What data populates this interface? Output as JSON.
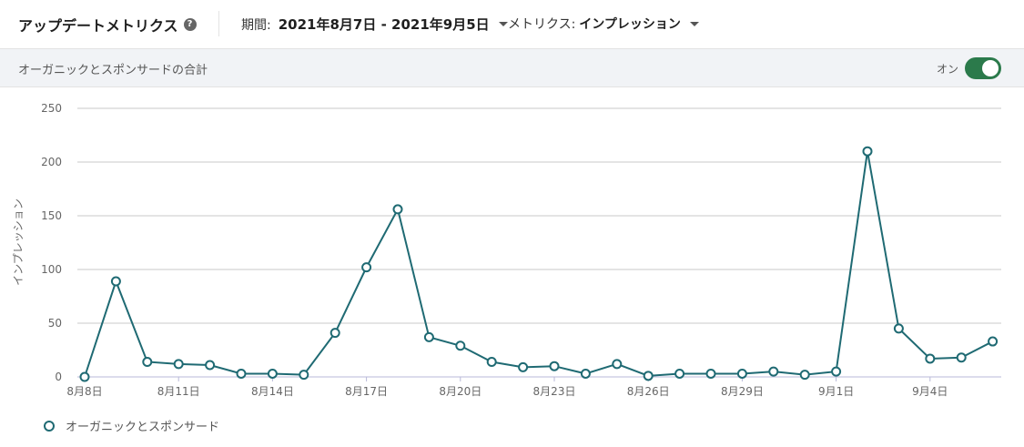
{
  "header": {
    "title": "アップデートメトリクス",
    "help_icon": "question-circle-icon",
    "period_label": "期間:",
    "period_value": "2021年8月7日 - 2021年9月5日",
    "metric_label": "メトリクス:",
    "metric_value": "インプレッション"
  },
  "subheader": {
    "label": "オーガニックとスポンサードの合計",
    "toggle_label": "オン",
    "toggle_on": true
  },
  "colors": {
    "series": "#1f6a73",
    "toggle": "#2b7a4b",
    "grid": "#c8c8c8"
  },
  "chart_data": {
    "type": "line",
    "title": "",
    "xlabel": "",
    "ylabel": "インプレッション",
    "ylim": [
      0,
      250
    ],
    "yticks": [
      0,
      50,
      100,
      150,
      200,
      250
    ],
    "grid": true,
    "legend_position": "bottom-left",
    "x": [
      "8月8日",
      "8月9日",
      "8月10日",
      "8月11日",
      "8月12日",
      "8月13日",
      "8月14日",
      "8月15日",
      "8月16日",
      "8月17日",
      "8月18日",
      "8月19日",
      "8月20日",
      "8月21日",
      "8月22日",
      "8月23日",
      "8月24日",
      "8月25日",
      "8月26日",
      "8月27日",
      "8月28日",
      "8月29日",
      "8月30日",
      "8月31日",
      "9月1日",
      "9月2日",
      "9月3日",
      "9月4日",
      "9月5日",
      "9月6日"
    ],
    "xtick_labels": [
      "8月8日",
      "8月11日",
      "8月14日",
      "8月17日",
      "8月20日",
      "8月23日",
      "8月26日",
      "8月29日",
      "9月1日",
      "9月4日"
    ],
    "series": [
      {
        "name": "オーガニックとスポンサード",
        "values": [
          0,
          89,
          14,
          12,
          11,
          3,
          3,
          2,
          41,
          102,
          156,
          37,
          29,
          14,
          9,
          10,
          3,
          12,
          1,
          3,
          3,
          3,
          5,
          2,
          5,
          210,
          45,
          17,
          18,
          33
        ]
      }
    ]
  }
}
